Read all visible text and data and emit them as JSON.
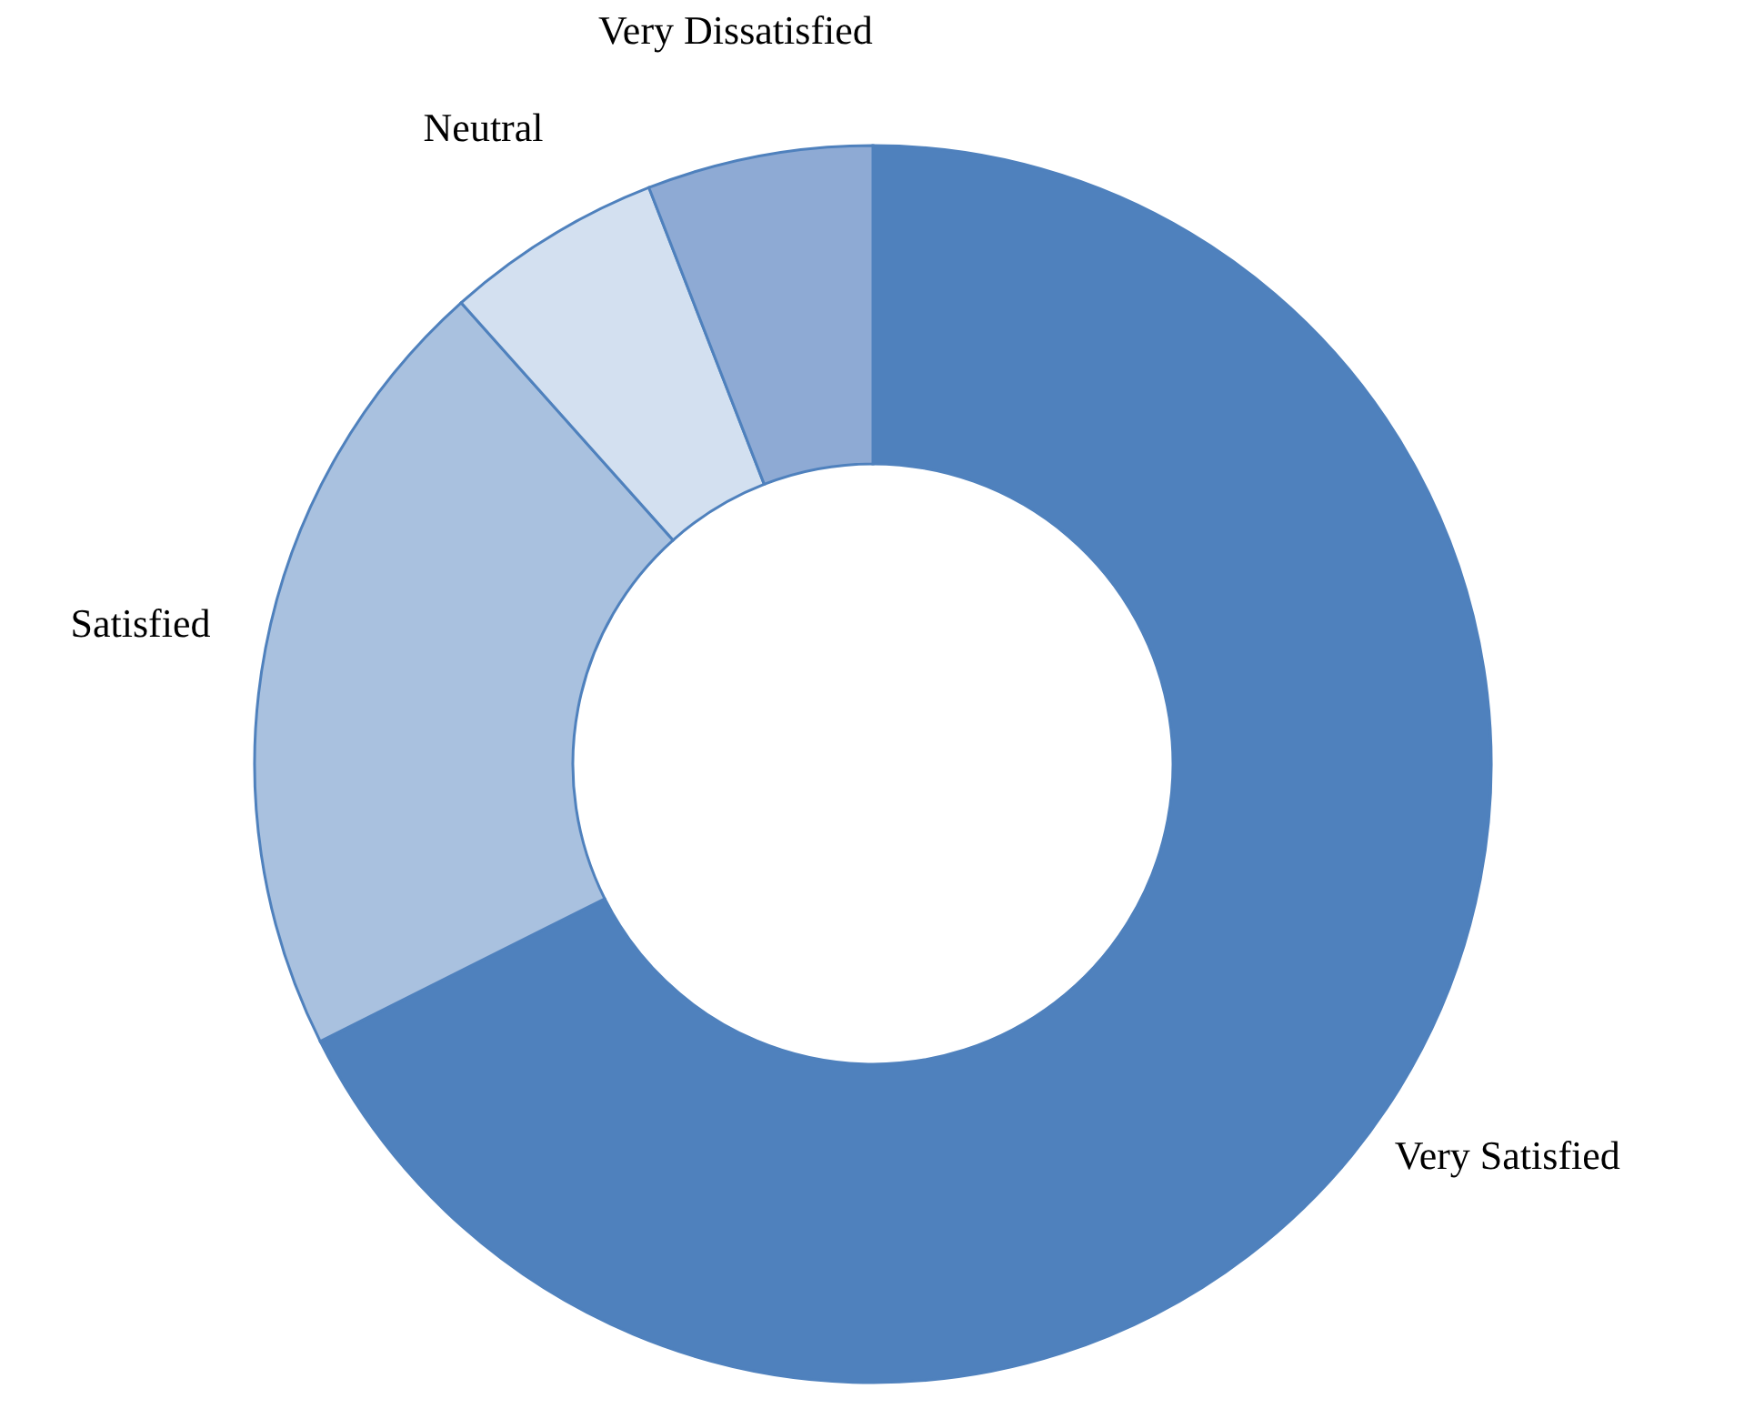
{
  "chart_data": {
    "type": "donut",
    "categories": [
      "Very Satisfied",
      "Satisfied",
      "Neutral",
      "Very Dissatisfied"
    ],
    "values": [
      67.6,
      20.8,
      5.7,
      5.9
    ],
    "colors": [
      "#4f81bd",
      "#a9c1df",
      "#d3e0f0",
      "#8eaad4"
    ]
  }
}
